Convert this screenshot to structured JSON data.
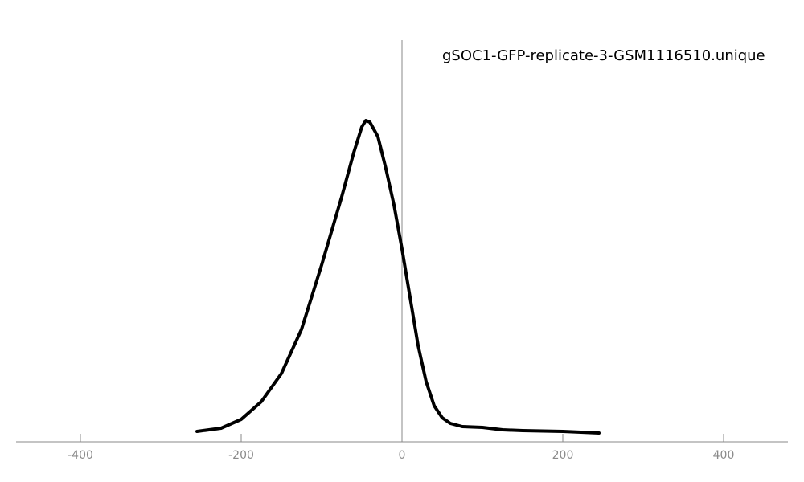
{
  "chart_data": {
    "type": "line",
    "title": "gSOC1-GFP-replicate-3-GSM1116510.unique",
    "x": [
      -255,
      -225,
      -200,
      -175,
      -150,
      -125,
      -100,
      -75,
      -60,
      -50,
      -45,
      -40,
      -30,
      -20,
      -10,
      0,
      10,
      20,
      30,
      40,
      50,
      60,
      75,
      100,
      125,
      150,
      200,
      245
    ],
    "series": [
      {
        "color": "#000000",
        "values": [
          13,
          17,
          28,
          50,
          85,
          140,
          220,
          305,
          360,
          392,
          400,
          398,
          380,
          340,
          295,
          240,
          180,
          120,
          75,
          45,
          30,
          23,
          19,
          18,
          15,
          14,
          13,
          11
        ]
      }
    ],
    "xlim": [
      -480,
      480
    ],
    "xticks": [
      -400,
      -200,
      0,
      200,
      400
    ],
    "ylim": [
      0,
      500
    ]
  }
}
